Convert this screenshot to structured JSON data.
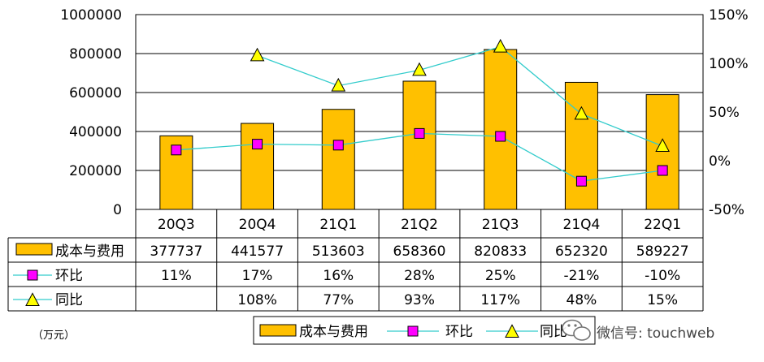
{
  "chart_data": {
    "type": "bar",
    "categories": [
      "20Q3",
      "20Q4",
      "21Q1",
      "21Q2",
      "21Q3",
      "21Q4",
      "22Q1"
    ],
    "series": [
      {
        "name": "成本与费用",
        "type": "bar",
        "axis": "left",
        "color": "#FFC000",
        "values": [
          377737,
          441577,
          513603,
          658360,
          820833,
          652320,
          589227
        ],
        "table_values": [
          "377737",
          "441577",
          "513603",
          "658360",
          "820833",
          "652320",
          "589227"
        ]
      },
      {
        "name": "环比",
        "type": "line",
        "axis": "right",
        "color": "#33CCCC",
        "marker": "square",
        "marker_color": "#FF00FF",
        "values": [
          11,
          17,
          16,
          28,
          25,
          -21,
          -10
        ],
        "table_values": [
          "11%",
          "17%",
          "16%",
          "28%",
          "25%",
          "-21%",
          "-10%"
        ]
      },
      {
        "name": "同比",
        "type": "line",
        "axis": "right",
        "color": "#33CCCC",
        "marker": "triangle",
        "marker_color": "#FFFF00",
        "values": [
          null,
          108,
          77,
          93,
          117,
          48,
          15
        ],
        "table_values": [
          "",
          "108%",
          "77%",
          "93%",
          "117%",
          "48%",
          "15%"
        ]
      }
    ],
    "y_left": {
      "ticks": [
        "1000000",
        "800000",
        "600000",
        "400000",
        "200000",
        "0"
      ],
      "ylim": [
        0,
        1000000
      ]
    },
    "y_right": {
      "ticks": [
        "150%",
        "100%",
        "50%",
        "0%",
        "-50%"
      ],
      "ylim": [
        -50,
        150
      ]
    },
    "grid": true,
    "data_table": true
  },
  "unit_label": "（万元）",
  "legend": {
    "items": [
      "成本与费用",
      "环比",
      "同比"
    ]
  },
  "watermark": {
    "icon": "wechat-icon",
    "text": "微信号: touchweb"
  }
}
